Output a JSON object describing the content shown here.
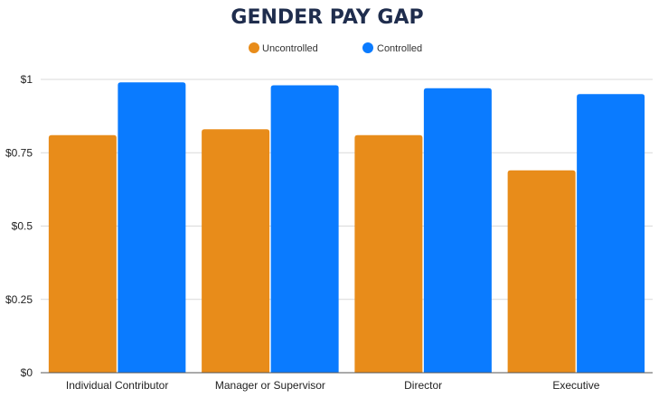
{
  "chart_data": {
    "type": "bar",
    "title": "GENDER PAY GAP",
    "categories": [
      "Individual Contributor",
      "Manager or Supervisor",
      "Director",
      "Executive"
    ],
    "series": [
      {
        "name": "Uncontrolled",
        "color": "#e88c1a",
        "values": [
          0.81,
          0.83,
          0.81,
          0.69
        ]
      },
      {
        "name": "Controlled",
        "color": "#0a7bff",
        "values": [
          0.99,
          0.98,
          0.97,
          0.95
        ]
      }
    ],
    "yticks": [
      {
        "value": 0,
        "label": "$0"
      },
      {
        "value": 0.25,
        "label": "$0.25"
      },
      {
        "value": 0.5,
        "label": "$0.5"
      },
      {
        "value": 0.75,
        "label": "$0.75"
      },
      {
        "value": 1,
        "label": "$1"
      }
    ],
    "ylim": [
      0,
      1
    ],
    "grid": true,
    "legend_position": "top-center"
  }
}
